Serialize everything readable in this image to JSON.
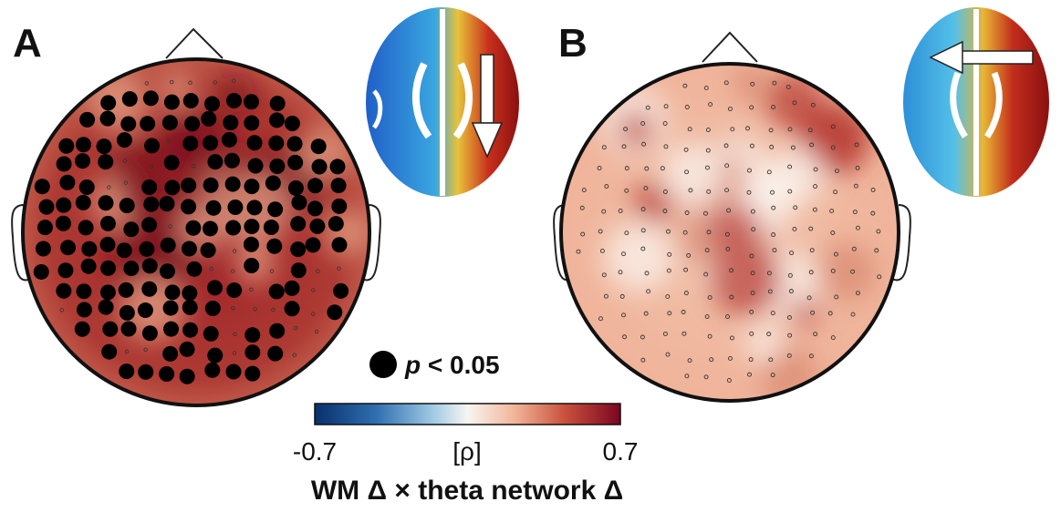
{
  "panels": [
    {
      "label": "A"
    },
    {
      "label": "B"
    }
  ],
  "legend": {
    "italic": "p",
    "rest": "< 0.05"
  },
  "colorbar": {
    "min_label": "-0.7",
    "unit": "[ρ]",
    "max_label": "0.7",
    "title": "WM Δ × theta network Δ"
  }
}
